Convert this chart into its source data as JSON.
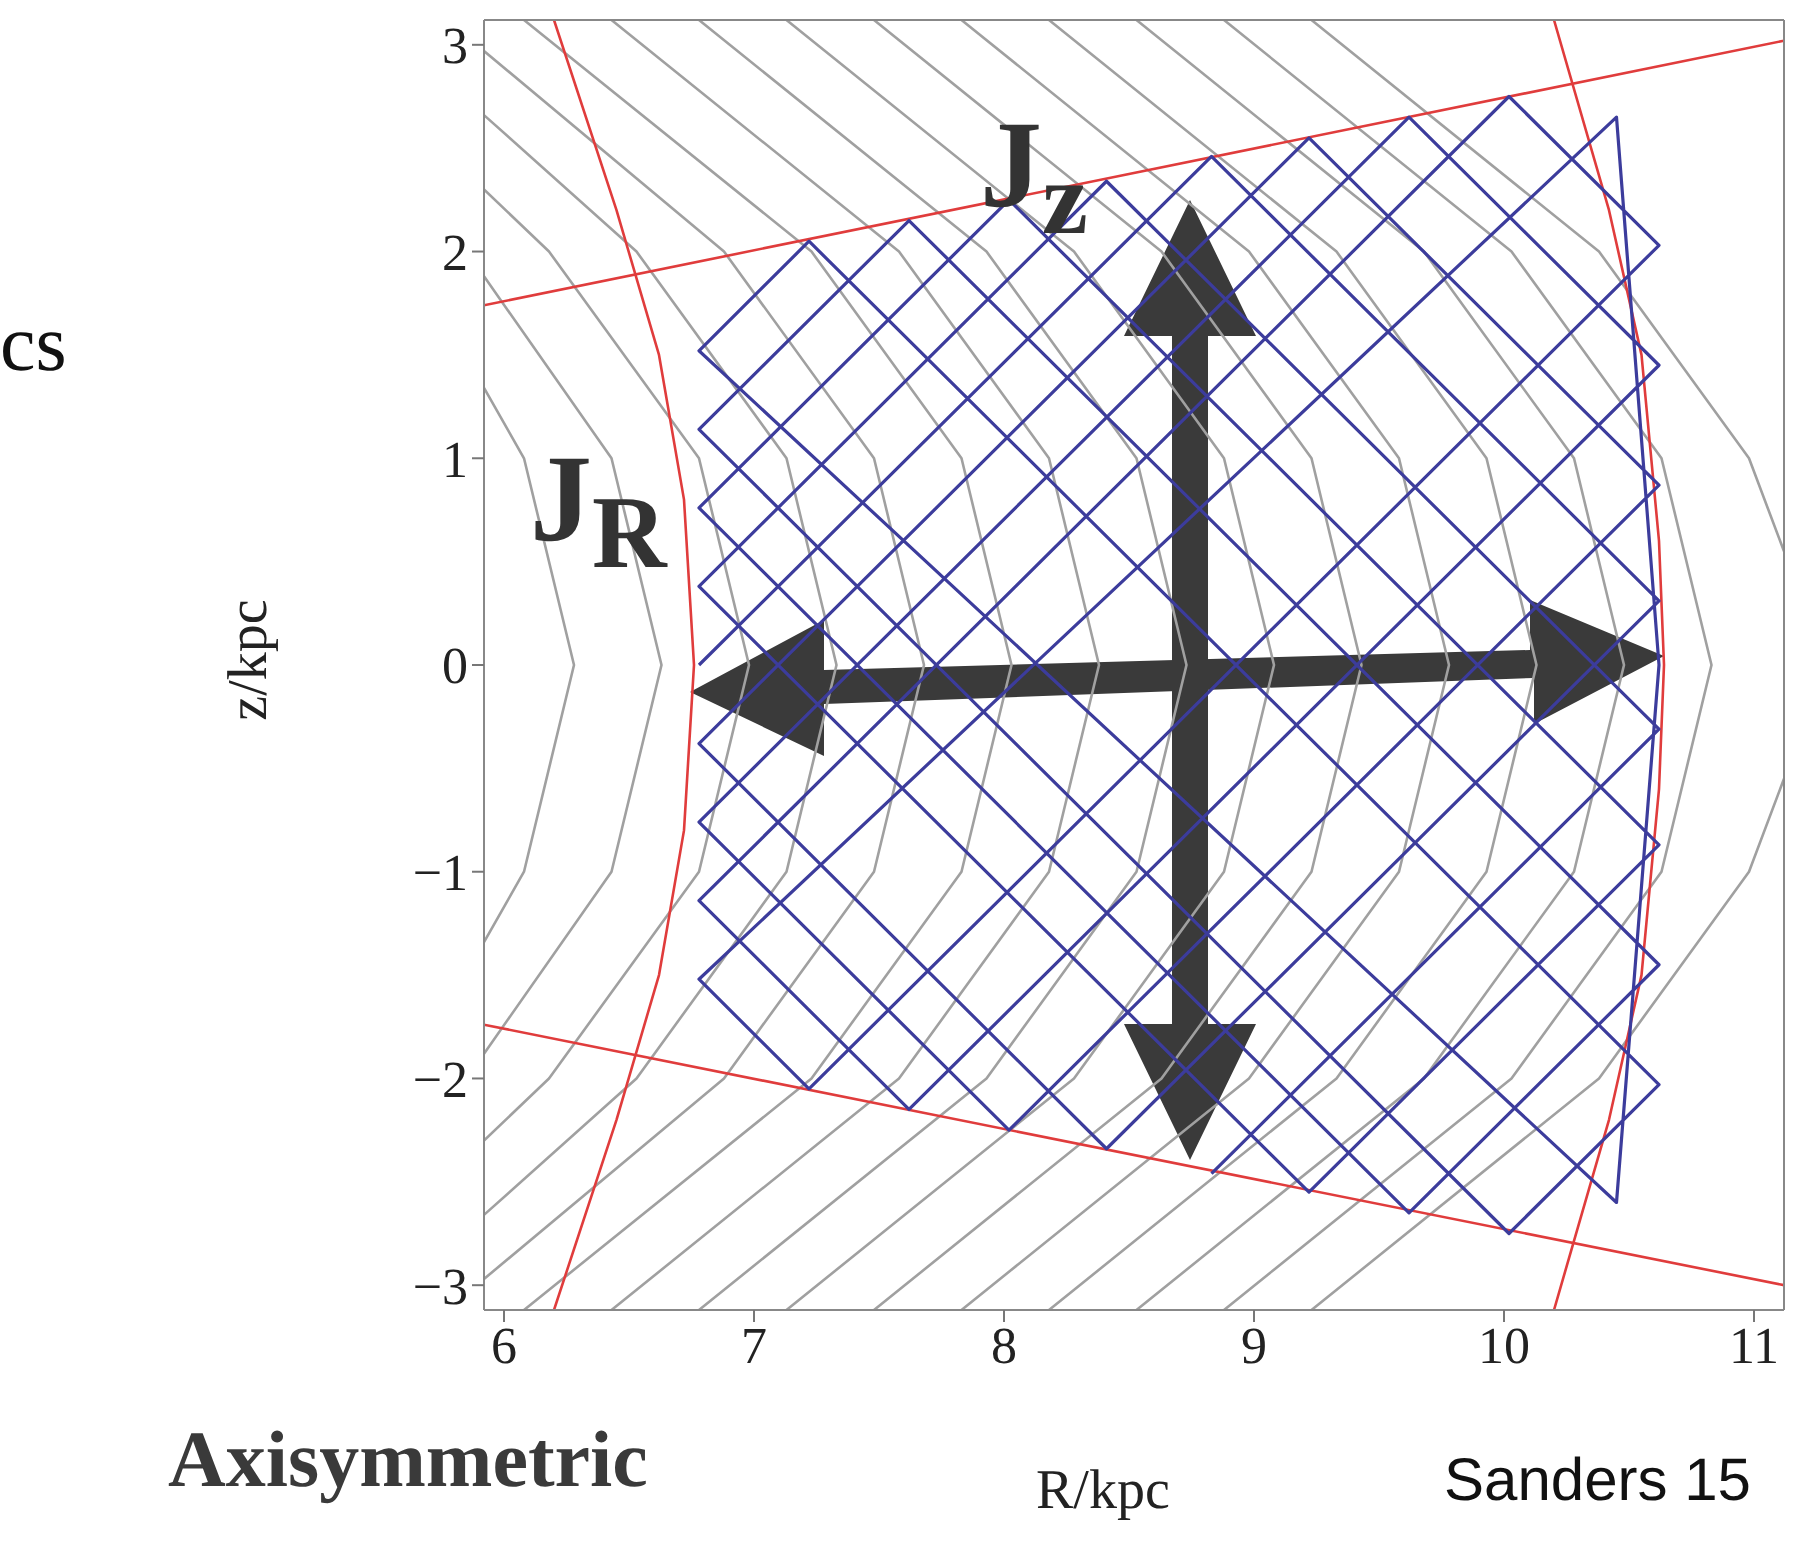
{
  "chart_data": {
    "type": "line",
    "xlabel": "R/kpc",
    "ylabel": "z/kpc",
    "xlim": [
      5.92,
      11.12
    ],
    "ylim": [
      -3.12,
      3.12
    ],
    "xticks": [
      6,
      7,
      8,
      9,
      10,
      11
    ],
    "yticks": [
      {
        "value": -3,
        "label": "−3"
      },
      {
        "value": -2,
        "label": "−2"
      },
      {
        "value": -1,
        "label": "−1"
      },
      0,
      1,
      2,
      3
    ],
    "grid": false,
    "marker": "none",
    "line_style": "solid",
    "annotations": [
      "J$_{z}$",
      "J$_{R}$",
      "Axisymmetric",
      "Sanders 15",
      "cs"
    ],
    "series": [
      {
        "color": "#a0a0a0",
        "x": [
          5.92,
          6.08,
          6.28,
          6.08,
          5.92
        ],
        "values": [
          -1.34,
          -1,
          0,
          1,
          1.34
        ]
      },
      {
        "color": "#a0a0a0",
        "x": [
          5.92,
          6.43,
          6.63,
          6.43,
          5.92
        ],
        "values": [
          -1.88,
          -1,
          0,
          1,
          1.88
        ]
      },
      {
        "color": "#a0a0a0",
        "x": [
          5.92,
          6.18,
          6.78,
          6.98,
          6.78,
          6.18,
          5.92
        ],
        "values": [
          -2.3,
          -2,
          -1,
          0,
          1,
          2,
          2.3
        ]
      },
      {
        "color": "#a0a0a0",
        "x": [
          5.92,
          6.53,
          7.13,
          7.33,
          7.13,
          6.53,
          5.92
        ],
        "values": [
          -2.66,
          -2,
          -1,
          0,
          1,
          2,
          2.66
        ]
      },
      {
        "color": "#a0a0a0",
        "x": [
          5.92,
          6.88,
          7.48,
          7.68,
          7.48,
          6.88,
          5.92
        ],
        "values": [
          -2.97,
          -2,
          -1,
          0,
          1,
          2,
          2.97
        ]
      },
      {
        "color": "#a0a0a0",
        "x": [
          6.08,
          7.23,
          7.83,
          8.03,
          7.83,
          7.23,
          6.08
        ],
        "values": [
          -3.12,
          -2,
          -1,
          0,
          1,
          2,
          3.12
        ]
      },
      {
        "color": "#a0a0a0",
        "x": [
          6.43,
          7.58,
          8.18,
          8.38,
          8.18,
          7.58,
          6.43
        ],
        "values": [
          -3.12,
          -2,
          -1,
          0,
          1,
          2,
          3.12
        ]
      },
      {
        "color": "#a0a0a0",
        "x": [
          6.78,
          7.93,
          8.53,
          8.73,
          8.53,
          7.93,
          6.78
        ],
        "values": [
          -3.12,
          -2,
          -1,
          0,
          1,
          2,
          3.12
        ]
      },
      {
        "color": "#a0a0a0",
        "x": [
          7.13,
          8.28,
          8.88,
          9.08,
          8.88,
          8.28,
          7.13
        ],
        "values": [
          -3.12,
          -2,
          -1,
          0,
          1,
          2,
          3.12
        ]
      },
      {
        "color": "#a0a0a0",
        "x": [
          7.48,
          8.63,
          9.23,
          9.43,
          9.23,
          8.63,
          7.48
        ],
        "values": [
          -3.12,
          -2,
          -1,
          0,
          1,
          2,
          3.12
        ]
      },
      {
        "color": "#a0a0a0",
        "x": [
          7.83,
          8.98,
          9.58,
          9.78,
          9.58,
          8.98,
          7.83
        ],
        "values": [
          -3.12,
          -2,
          -1,
          0,
          1,
          2,
          3.12
        ]
      },
      {
        "color": "#a0a0a0",
        "x": [
          8.18,
          9.33,
          9.93,
          10.13,
          9.93,
          9.33,
          8.18
        ],
        "values": [
          -3.12,
          -2,
          -1,
          0,
          1,
          2,
          3.12
        ]
      },
      {
        "color": "#a0a0a0",
        "x": [
          8.53,
          9.68,
          10.28,
          10.48,
          10.28,
          9.68,
          8.53
        ],
        "values": [
          -3.12,
          -2,
          -1,
          0,
          1,
          2,
          3.12
        ]
      },
      {
        "color": "#a0a0a0",
        "x": [
          8.88,
          10.03,
          10.63,
          10.83,
          10.63,
          10.03,
          8.88
        ],
        "values": [
          -3.12,
          -2,
          -1,
          0,
          1,
          2,
          3.12
        ]
      },
      {
        "color": "#a0a0a0",
        "x": [
          9.23,
          10.38,
          10.98,
          11.12
        ],
        "values": [
          -3.12,
          -2,
          -1,
          -0.55
        ]
      },
      {
        "color": "#a0a0a0",
        "x": [
          11.12,
          10.98,
          10.38,
          9.23
        ],
        "values": [
          0.55,
          1,
          2,
          3.12
        ]
      },
      {
        "color": "#e03c3c",
        "x": [
          5.92,
          11.12
        ],
        "values": [
          1.74,
          3.02
        ]
      },
      {
        "color": "#e03c3c",
        "x": [
          5.92,
          11.12
        ],
        "values": [
          -1.74,
          -3.0
        ]
      },
      {
        "color": "#e03c3c",
        "x": [
          6.2,
          6.45,
          6.62,
          6.72,
          6.76,
          6.72,
          6.62,
          6.45,
          6.2
        ],
        "values": [
          -3.12,
          -2.2,
          -1.5,
          -0.8,
          0,
          0.8,
          1.5,
          2.2,
          3.12
        ]
      },
      {
        "color": "#e03c3c",
        "x": [
          10.2,
          10.42,
          10.55,
          10.62,
          10.64,
          10.62,
          10.55,
          10.42,
          10.2
        ],
        "values": [
          -3.12,
          -2.2,
          -1.5,
          -0.6,
          0,
          0.6,
          1.5,
          2.2,
          3.12
        ]
      },
      {
        "color": "#3c3c9c",
        "x": [
          6.78,
          8.83,
          10.62,
          8.41,
          6.78,
          9.22,
          10.62,
          8.02,
          6.78,
          9.62,
          10.62,
          7.62,
          6.78,
          10.02,
          10.62,
          7.22,
          6.78,
          10.45,
          10.62,
          10.45,
          6.78,
          7.22,
          10.62,
          10.02,
          6.78,
          7.62,
          10.62,
          9.62,
          6.78,
          8.02,
          10.62,
          9.22,
          6.78,
          8.41,
          10.62,
          8.83
        ],
        "values": [
          0,
          2.46,
          0.31,
          -2.34,
          -0.38,
          2.55,
          0.87,
          -2.25,
          -0.76,
          2.65,
          1.45,
          -2.15,
          -1.14,
          2.75,
          2.03,
          -2.05,
          -1.52,
          2.65,
          0,
          -2.6,
          1.52,
          2.05,
          -2.03,
          -2.75,
          1.14,
          2.15,
          -1.45,
          -2.65,
          0.76,
          2.25,
          -0.87,
          -2.55,
          0.38,
          2.34,
          -0.31,
          -2.46
        ]
      }
    ]
  }
}
